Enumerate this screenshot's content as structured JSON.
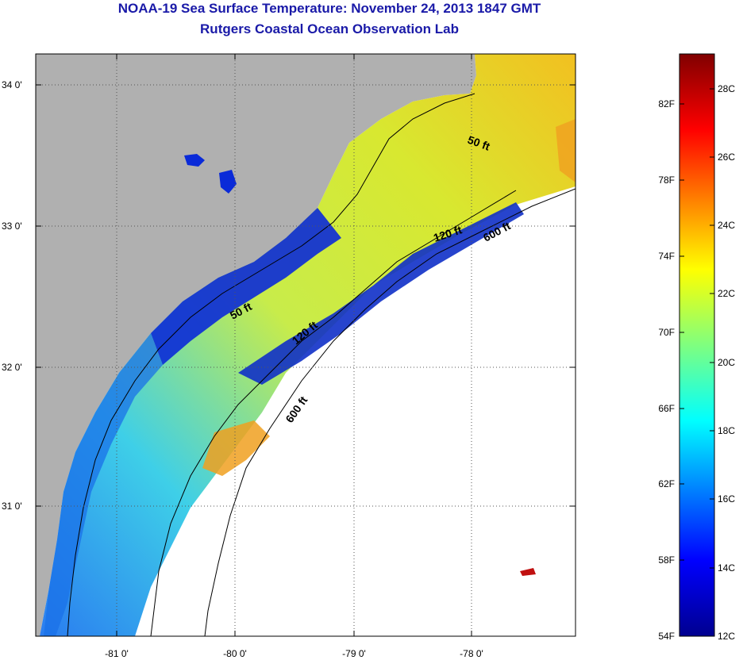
{
  "title": "NOAA-19 Sea Surface Temperature:  November 24, 2013 1847 GMT",
  "subtitle": "Rutgers Coastal Ocean Observation Lab",
  "map": {
    "lat_labels": [
      "34 0'",
      "33 0'",
      "32 0'",
      "31 0'"
    ],
    "lon_labels": [
      "-81 0'",
      "-80 0'",
      "-79 0'",
      "-78 0'"
    ],
    "contours": [
      "50 ft",
      "120 ft",
      "600 ft",
      "50 ft",
      "120 ft",
      "600 ft"
    ]
  },
  "colorbar": {
    "fahrenheit_labels": [
      "82F",
      "78F",
      "74F",
      "70F",
      "66F",
      "62F",
      "58F",
      "54F"
    ],
    "celsius_labels": [
      "28C",
      "26C",
      "24C",
      "22C",
      "20C",
      "18C",
      "16C",
      "14C",
      "12C"
    ]
  },
  "colors": {
    "land": "#b0b0b0",
    "title": "#1a1aa8",
    "coastal_cold": "#0a2ad8",
    "shelf_warm": "#d8e830"
  }
}
